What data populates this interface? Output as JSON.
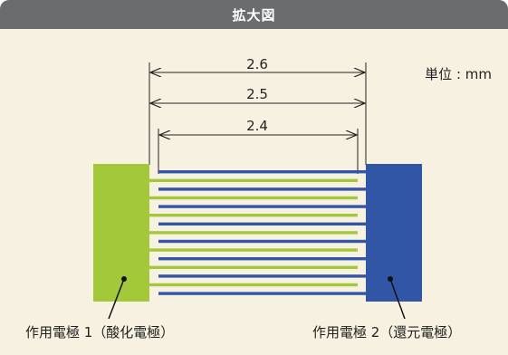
{
  "header": {
    "title": "拡大図"
  },
  "unit_label": "単位 : mm",
  "dimensions": [
    "2.6",
    "2.5",
    "2.4"
  ],
  "labels": {
    "left_electrode": "作用電極 1（酸化電極）",
    "right_electrode": "作用電極 2（還元電極）"
  },
  "colors": {
    "header_bg": "#6a6c6d",
    "background": "#f6f1e1",
    "electrode_green": "#a3c93a",
    "electrode_blue": "#3056a5",
    "line": "#222222"
  }
}
